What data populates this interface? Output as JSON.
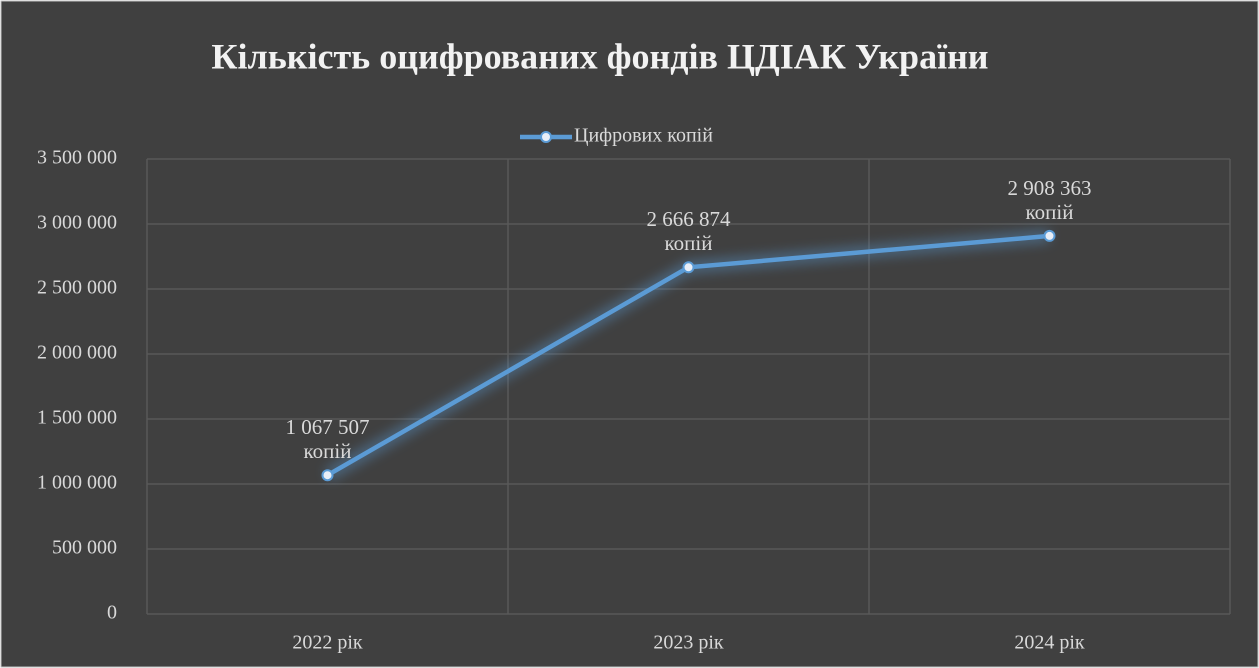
{
  "chart_data": {
    "type": "line",
    "title": "Кількість оцифрованих фондів ЦДІАК України",
    "categories": [
      "2022 рік",
      "2023 рік",
      "2024 рік"
    ],
    "series": [
      {
        "name": "Цифрових копій",
        "color": "#5b9bd5",
        "values": [
          1067507,
          2666874,
          2908363
        ],
        "value_labels": [
          "1 067 507\nкопій",
          "2 666 874\nкопій",
          "2 908 363\nкопій"
        ]
      }
    ],
    "ylim": [
      0,
      3500000
    ],
    "yticks": [
      0,
      {
        "value": 500000,
        "label": "500 000"
      },
      {
        "value": 1000000,
        "label": "1 000 000"
      },
      {
        "value": 1500000,
        "label": "1 500 000"
      },
      {
        "value": 2000000,
        "label": "2 000 000"
      },
      {
        "value": 2500000,
        "label": "2 500 000"
      },
      {
        "value": 3000000,
        "label": "3 000 000"
      },
      {
        "value": 3500000,
        "label": "3 500 000"
      }
    ],
    "grid": true,
    "legend": "top"
  }
}
